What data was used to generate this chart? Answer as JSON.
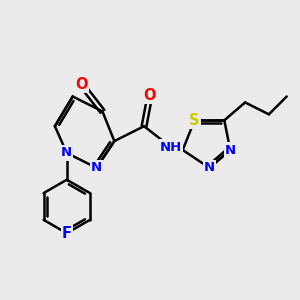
{
  "background_color": "#ebebeb",
  "bond_color": "#000000",
  "bond_width": 1.8,
  "atom_colors": {
    "N": "#0000ff",
    "O": "#ff0000",
    "S": "#cccc00",
    "F": "#0000ff",
    "C": "#000000"
  },
  "font_size": 9.5
}
